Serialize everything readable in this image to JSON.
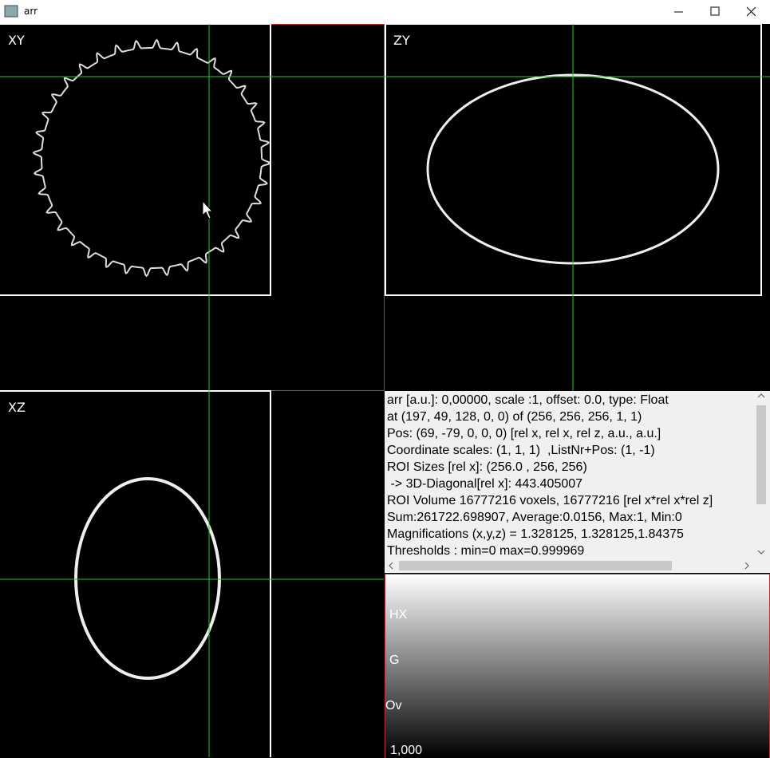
{
  "window": {
    "title": "arr"
  },
  "panels": {
    "xy": "XY",
    "zy": "ZY",
    "xz": "XZ"
  },
  "info": {
    "lines": [
      "arr [a.u.]: 0,00000, scale :1, offset: 0.0, type: Float",
      "at (197, 49, 128, 0, 0) of (256, 256, 256, 1, 1)",
      "Pos: (69, -79, 0, 0, 0) [rel x, rel x, rel z, a.u., a.u.]",
      "Coordinate scales: (1, 1, 1)  ,ListNr+Pos: (1, -1)",
      "ROI Sizes [rel x]: (256.0 , 256, 256)",
      " -> 3D-Diagonal[rel x]: 443.405007",
      "ROI Volume 16777216 voxels, 16777216 [rel x*rel x*rel z]",
      "Sum:261722.698907, Average:0.0156, Max:1, Min:0",
      "Magnifications (x,y,z) = 1.328125, 1.328125,1.84375",
      "Thresholds : min=0 max=0.999969"
    ]
  },
  "colorbar": {
    "labels": [
      "HX",
      "G",
      "Ov",
      "1,000"
    ]
  }
}
